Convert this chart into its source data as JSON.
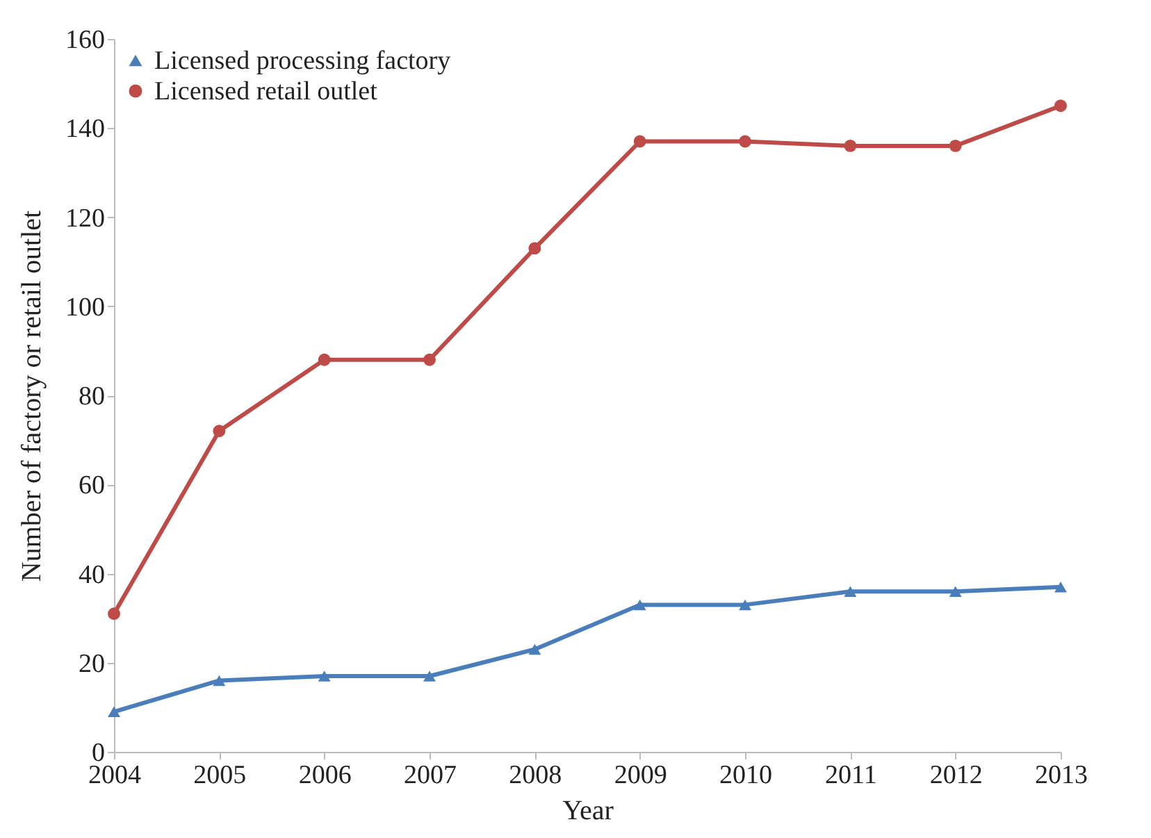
{
  "chart_data": {
    "type": "line",
    "xlabel": "Year",
    "ylabel": "Number of factory or retail outlet",
    "x": [
      2004,
      2005,
      2006,
      2007,
      2008,
      2009,
      2010,
      2011,
      2012,
      2013
    ],
    "series": [
      {
        "name": "Licensed processing factory",
        "color": "#4a7ebb",
        "marker": "triangle",
        "values": [
          9,
          16,
          17,
          17,
          23,
          33,
          33,
          36,
          36,
          37
        ]
      },
      {
        "name": "Licensed retail outlet",
        "color": "#be4b48",
        "marker": "circle",
        "values": [
          31,
          72,
          88,
          88,
          113,
          137,
          137,
          136,
          136,
          145
        ]
      }
    ],
    "xlim": [
      2004,
      2013
    ],
    "xticks": [
      2004,
      2005,
      2006,
      2007,
      2008,
      2009,
      2010,
      2011,
      2012,
      2013
    ],
    "ylim": [
      0,
      160
    ],
    "yticks": [
      0,
      20,
      40,
      60,
      80,
      100,
      120,
      140,
      160
    ],
    "grid": false,
    "legend": "top left",
    "line_style": "solid"
  }
}
